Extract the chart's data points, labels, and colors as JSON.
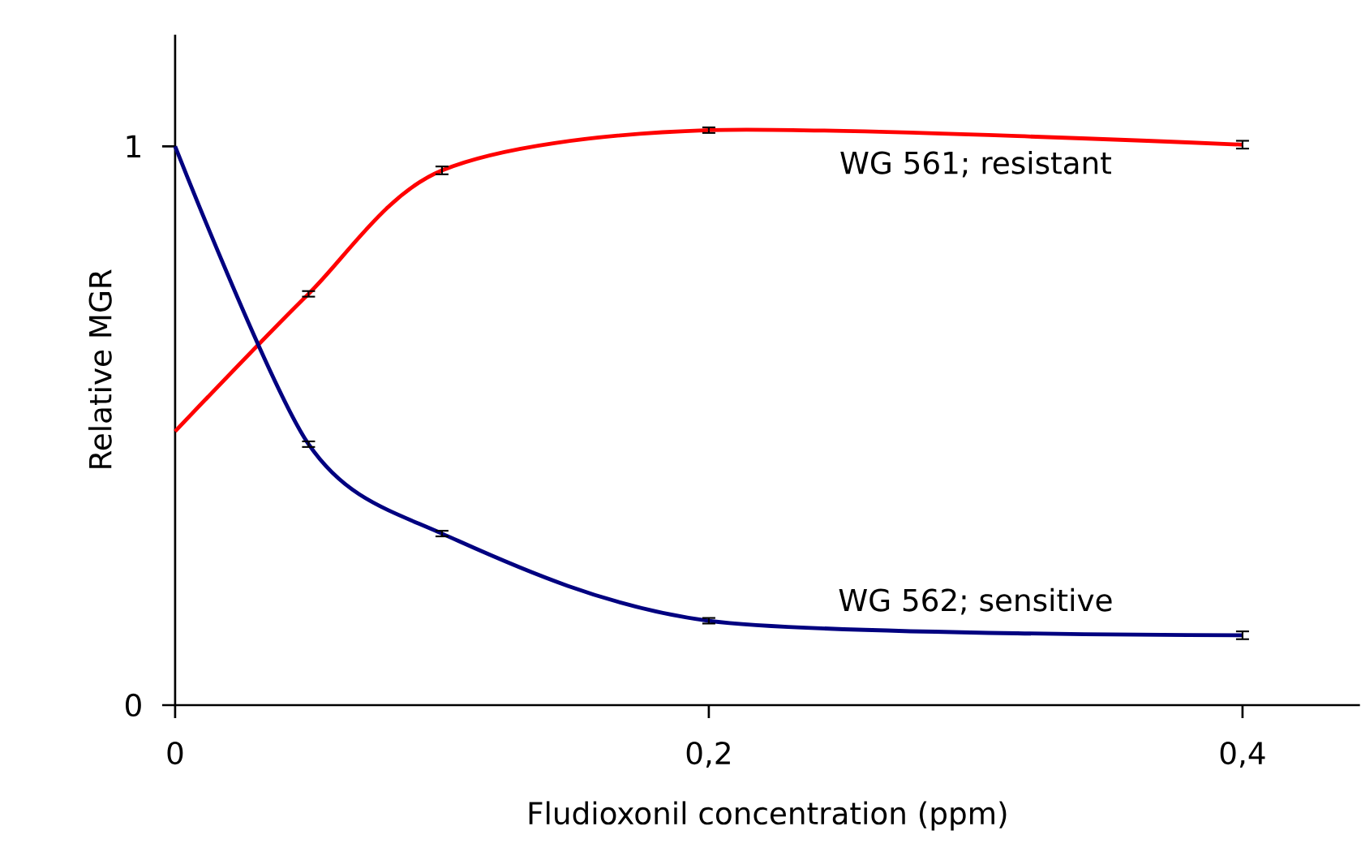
{
  "chart_data": {
    "type": "line",
    "xlabel": "Fludioxonil concentration (ppm)",
    "ylabel": "Relative MGR",
    "x": [
      0,
      0.05,
      0.1,
      0.2,
      0.4
    ],
    "series": [
      {
        "name": "WG 561; resistant",
        "color": "#ff0000",
        "values": [
          0.49,
          0.736,
          0.957,
          1.029,
          1.003
        ],
        "errors": [
          null,
          0.005,
          0.007,
          0.005,
          0.007
        ]
      },
      {
        "name": "WG 562; sensitive",
        "color": "#000080",
        "values": [
          1.0,
          0.467,
          0.307,
          0.151,
          0.125
        ],
        "errors": [
          null,
          0.005,
          0.005,
          0.005,
          0.007
        ]
      }
    ],
    "xlim": [
      0,
      0.444
    ],
    "ylim": [
      0,
      1.2
    ],
    "xticks": [
      0,
      {
        "value": 0.2,
        "label": "0,2"
      },
      {
        "value": 0.4,
        "label": "0,4"
      }
    ],
    "yticks": [
      0,
      1
    ],
    "grid": false,
    "legend": false,
    "marker": "none",
    "line_style": "solid"
  }
}
